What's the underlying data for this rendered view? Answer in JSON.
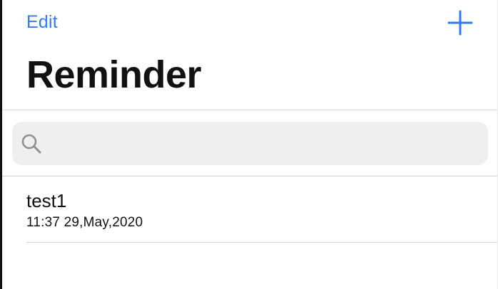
{
  "theme": {
    "accent": "#2f7cf6"
  },
  "navigation": {
    "edit_label": "Edit",
    "add_icon": "plus-icon"
  },
  "page": {
    "title": "Reminder"
  },
  "search": {
    "icon": "search-icon",
    "value": "",
    "placeholder": ""
  },
  "reminders": [
    {
      "title": "test1",
      "datetime": "11:37 29,May,2020"
    }
  ]
}
